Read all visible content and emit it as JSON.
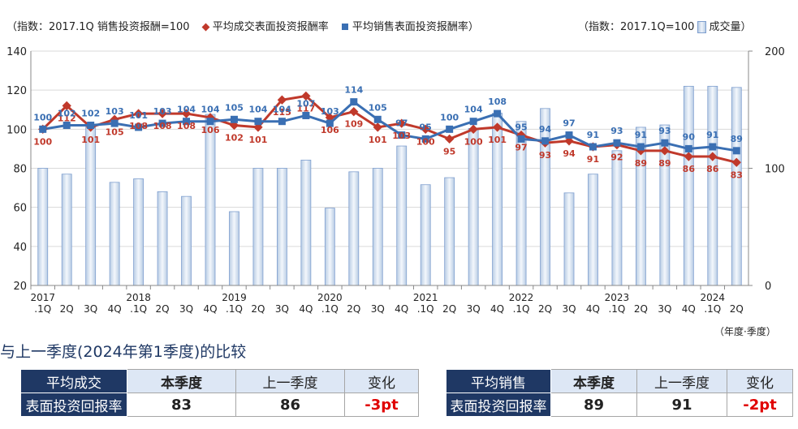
{
  "legend": {
    "index_note": "（指数：2017.1Q 销售投资报酬=100",
    "series_a": "平均成交表面投资报酬率",
    "series_b": "平均销售表面投资报酬率）",
    "right_note": "（指数：2017.1Q=100",
    "volume": "成交量）"
  },
  "unit_note": "（年度·季度）",
  "section_title": "与上一季度(2024年第1季度)的比较",
  "colors": {
    "red": "#c0392b",
    "blue": "#3a6fb3",
    "bar_fill": "#b8cce4",
    "header_navy": "#1f3864"
  },
  "chart_data": {
    "type": "bar+line",
    "quarters": [
      ".1Q",
      "2Q",
      "3Q",
      "4Q",
      ".1Q",
      "2Q",
      "3Q",
      "4Q",
      ".1Q",
      "2Q",
      "3Q",
      "4Q",
      ".1Q",
      "2Q",
      "3Q",
      "4Q",
      ".1Q",
      "2Q",
      "3Q",
      "4Q",
      ".1Q",
      "2Q",
      "3Q",
      "4Q",
      ".1Q",
      "2Q",
      "3Q",
      "4Q",
      ".1Q",
      "2Q"
    ],
    "years": [
      {
        "label": "2017",
        "index": 0
      },
      {
        "label": "2018",
        "index": 4
      },
      {
        "label": "2019",
        "index": 8
      },
      {
        "label": "2020",
        "index": 12
      },
      {
        "label": "2021",
        "index": 16
      },
      {
        "label": "2022",
        "index": 20
      },
      {
        "label": "2023",
        "index": 24
      },
      {
        "label": "2024",
        "index": 28
      }
    ],
    "y_left": {
      "min": 20,
      "max": 140,
      "ticks": [
        20,
        40,
        60,
        80,
        100,
        120,
        140
      ]
    },
    "y_right": {
      "min": 0,
      "max": 200,
      "ticks": [
        0,
        100,
        200
      ]
    },
    "series": [
      {
        "name": "平均成交表面投资报酬率",
        "axis": "left",
        "color": "#c0392b",
        "marker": "diamond",
        "values": [
          100,
          112,
          101,
          105,
          108,
          108,
          108,
          106,
          102,
          101,
          115,
          117,
          106,
          109,
          101,
          103,
          100,
          95,
          100,
          101,
          97,
          93,
          94,
          91,
          92,
          89,
          89,
          86,
          86,
          83
        ]
      },
      {
        "name": "平均销售表面投资报酬率",
        "axis": "left",
        "color": "#3a6fb3",
        "marker": "square",
        "values": [
          100,
          102,
          102,
          103,
          101,
          103,
          104,
          104,
          105,
          104,
          104,
          107,
          103,
          114,
          105,
          97,
          95,
          100,
          104,
          108,
          95,
          94,
          97,
          91,
          93,
          91,
          93,
          90,
          91,
          89
        ]
      },
      {
        "name": "成交量",
        "axis": "right",
        "type": "bar",
        "values": [
          100,
          95,
          137,
          88,
          91,
          80,
          76,
          146,
          63,
          100,
          100,
          107,
          66,
          97,
          100,
          119,
          86,
          92,
          134,
          147,
          140,
          151,
          79,
          95,
          115,
          135,
          137,
          170,
          170,
          169
        ]
      }
    ]
  },
  "tables": {
    "left": {
      "name_line1": "平均成交",
      "name_line2": "表面投资回报率",
      "col_current": "本季度",
      "col_previous": "上一季度",
      "col_change": "变化",
      "current": "83",
      "previous": "86",
      "change": "-3pt"
    },
    "right": {
      "name_line1": "平均销售",
      "name_line2": "表面投资回报率",
      "col_current": "本季度",
      "col_previous": "上一季度",
      "col_change": "变化",
      "current": "89",
      "previous": "91",
      "change": "-2pt"
    }
  }
}
